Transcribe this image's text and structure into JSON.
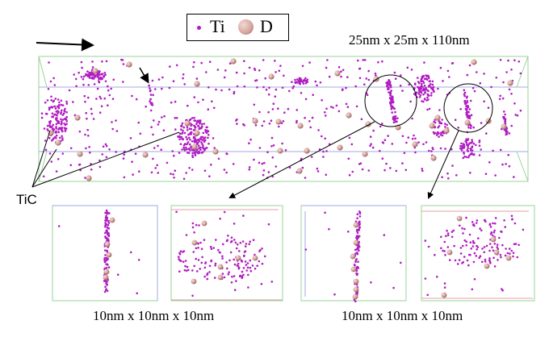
{
  "legend": {
    "ti_label": "Ti",
    "d_label": "D"
  },
  "labels": {
    "top_dimension": "25nm x 25m x 110nm",
    "tic": "TiC",
    "sub_dimension_left": "10nm x 10nm x 10nm",
    "sub_dimension_right": "10nm x 10nm x 10nm"
  },
  "colors": {
    "ti": "#b01cc2",
    "d": "#d8a8a2",
    "box_green": "#9ad39a",
    "box_blue": "#a3a8e0",
    "box_red": "#e3a3a3"
  }
}
